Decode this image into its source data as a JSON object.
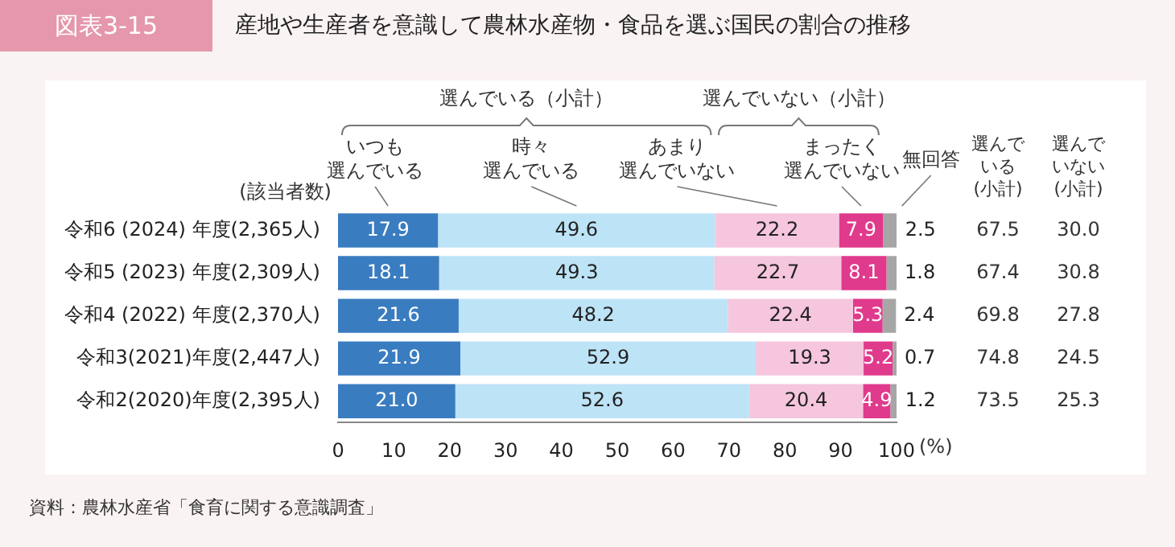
{
  "chart_data": {
    "type": "bar",
    "orientation": "horizontal",
    "stacked": true,
    "title": "産地や生産者を意識して農林水産物・食品を選ぶ国民の割合の推移",
    "ylabel": "(該当者数)",
    "xlabel": "(%)",
    "categories": [
      "令和6 (2024) 年度(2,365人)",
      "令和5 (2023) 年度(2,309人)",
      "令和4 (2022) 年度(2,370人)",
      "令和3(2021)年度(2,447人)",
      "令和2(2020)年度(2,395人)"
    ],
    "series": [
      {
        "name": "いつも選んでいる",
        "color": "#3a7cc0",
        "values": [
          17.9,
          18.1,
          21.6,
          21.9,
          21.0
        ],
        "value_labels": [
          "17.9",
          "18.1",
          "21.6",
          "21.9",
          "21.0"
        ]
      },
      {
        "name": "時々選んでいる",
        "color": "#bde3f6",
        "values": [
          49.6,
          49.3,
          48.2,
          52.9,
          52.6
        ],
        "value_labels": [
          "49.6",
          "49.3",
          "48.2",
          "52.9",
          "52.6"
        ]
      },
      {
        "name": "あまり選んでいない",
        "color": "#f5c6dd",
        "values": [
          22.2,
          22.7,
          22.4,
          19.3,
          20.4
        ],
        "value_labels": [
          "22.2",
          "22.7",
          "22.4",
          "19.3",
          "20.4"
        ]
      },
      {
        "name": "まったく選んでいない",
        "color": "#e03a8c",
        "values": [
          7.9,
          8.1,
          5.3,
          5.2,
          4.9
        ],
        "value_labels": [
          "7.9",
          "8.1",
          "5.3",
          "5.2",
          "4.9"
        ]
      },
      {
        "name": "無回答",
        "color": "#a6a6a6",
        "values": [
          2.5,
          1.8,
          2.4,
          0.7,
          1.2
        ],
        "value_labels": [
          "2.5",
          "1.8",
          "2.4",
          "0.7",
          "1.2"
        ]
      }
    ],
    "xlim": [
      0,
      100
    ],
    "xticks": [
      0,
      10,
      20,
      30,
      40,
      50,
      60,
      70,
      80,
      90,
      100
    ],
    "grid": false,
    "legend": "top",
    "annotations": [
      "図表3-15",
      "選んでいる（小計）",
      "選んでいない（小計）",
      "選んでいる(小計)",
      "選んでいない(小計)",
      "67.5",
      "30.0",
      "67.4",
      "30.8",
      "69.8",
      "27.8",
      "74.8",
      "24.5",
      "73.5",
      "25.3",
      "資料：農林水産省「食育に関する意識調査」"
    ]
  }
}
